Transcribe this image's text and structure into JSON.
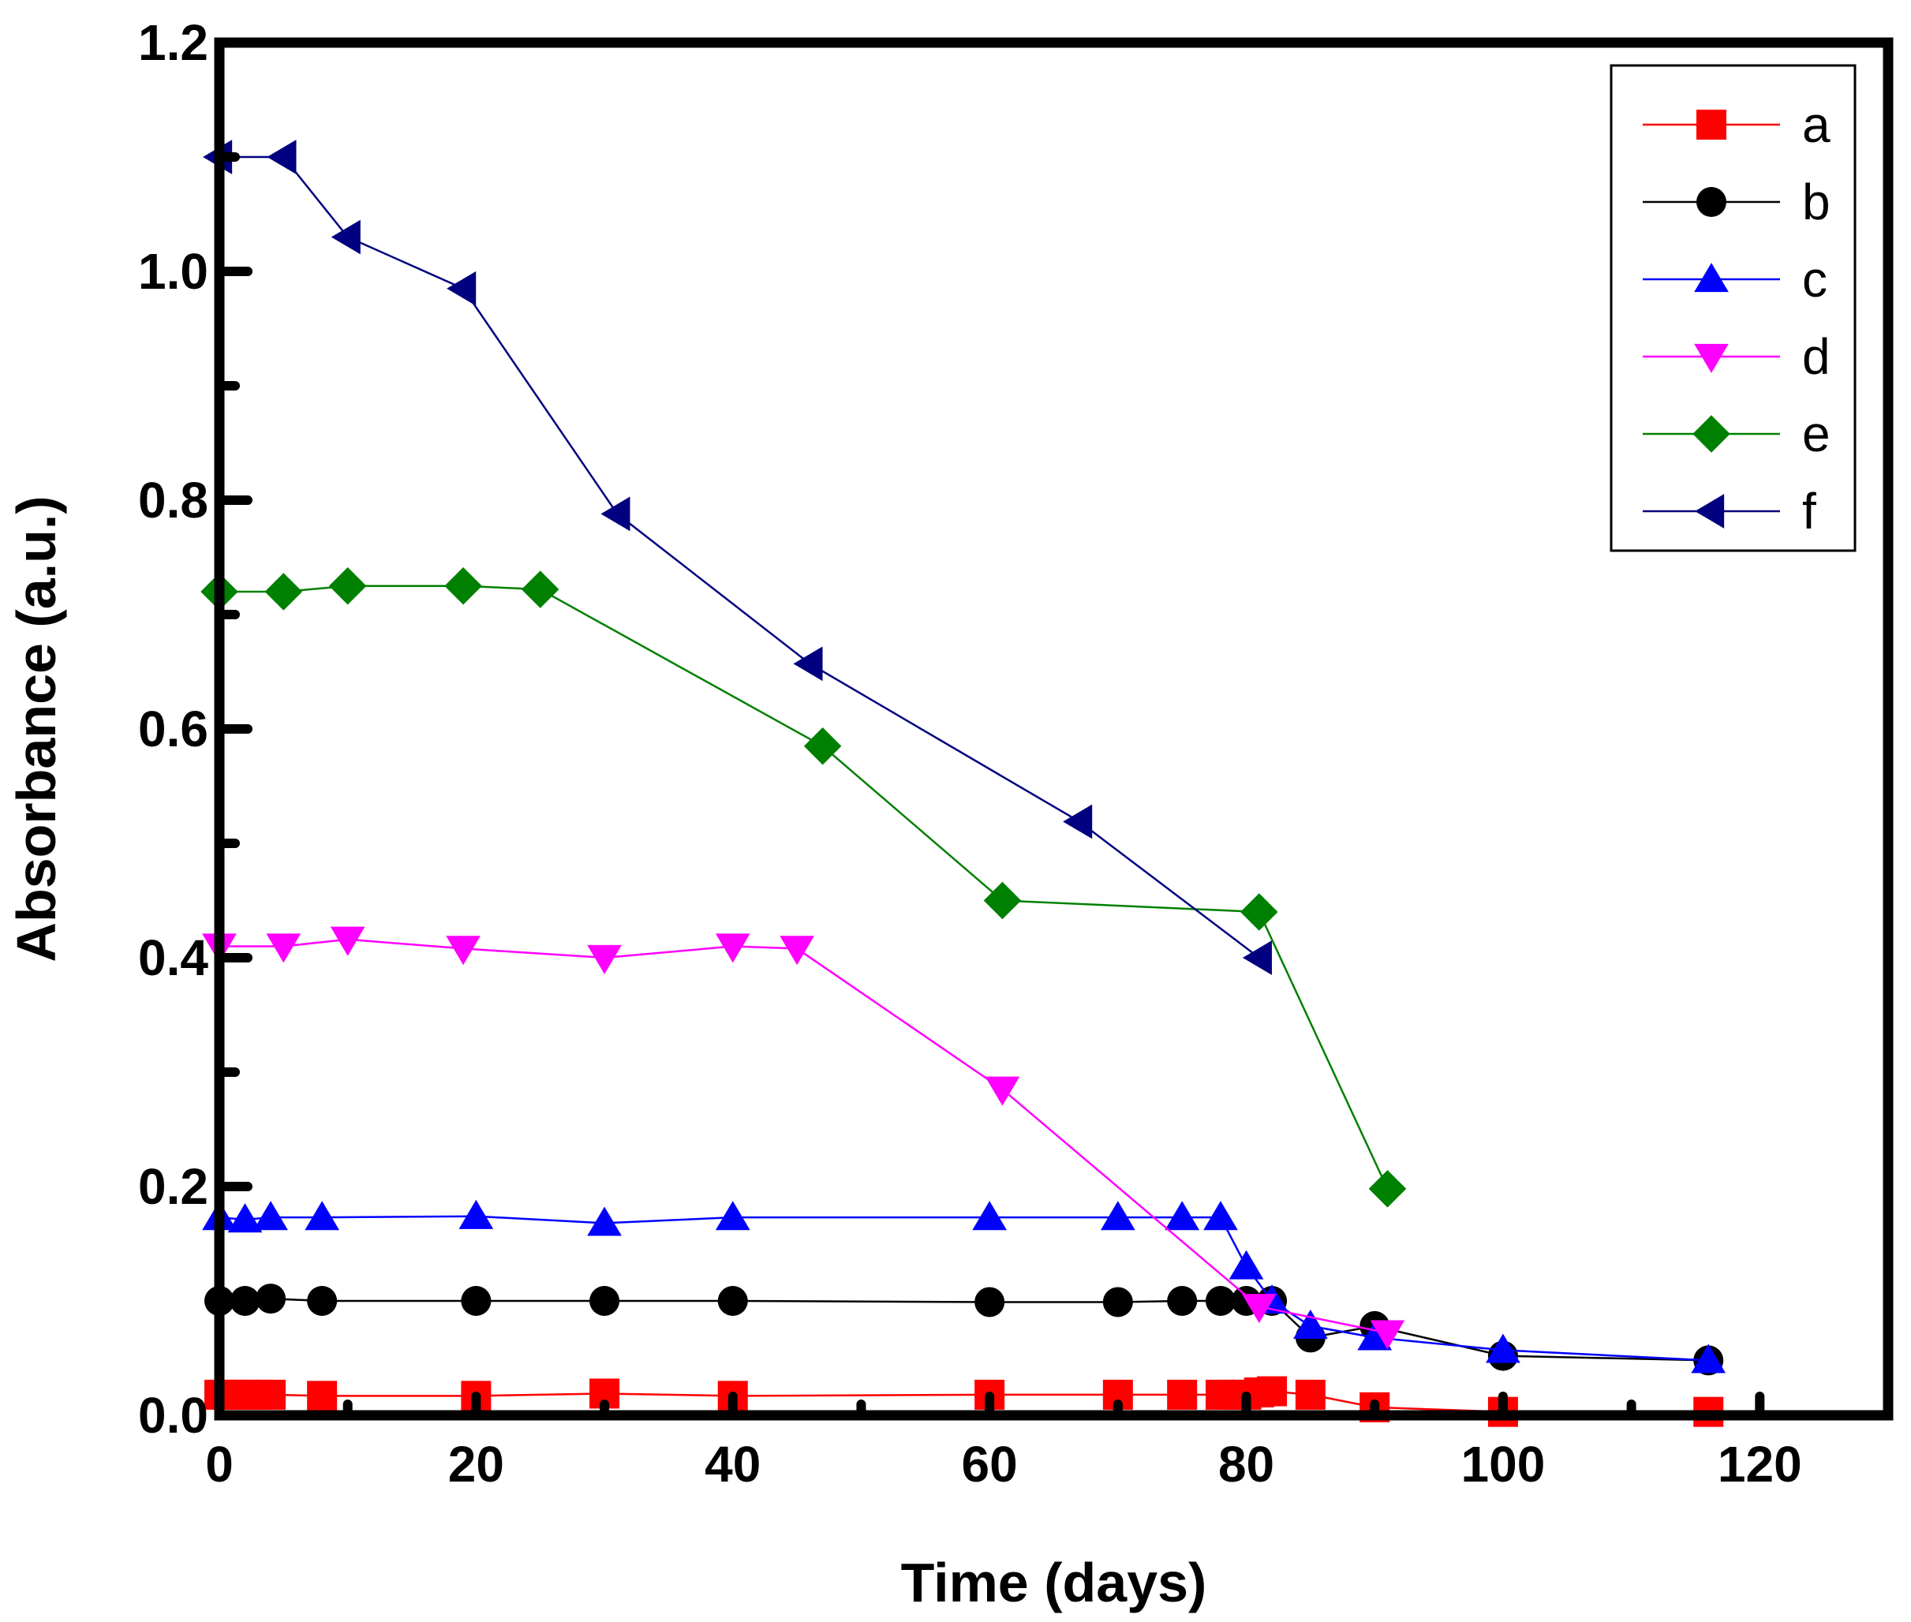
{
  "chart_data": {
    "type": "line",
    "title": "",
    "xlabel": "Time (days)",
    "ylabel": "Absorbance (a.u.)",
    "xlim": [
      0,
      130
    ],
    "ylim": [
      0,
      1.2
    ],
    "xticks": [
      0,
      20,
      40,
      60,
      80,
      100,
      120
    ],
    "xtick_labels": [
      "0",
      "20",
      "40",
      "60",
      "80",
      "100",
      "120"
    ],
    "yticks": [
      0,
      0.2,
      0.4,
      0.6,
      0.8,
      1.0,
      1.2
    ],
    "ytick_labels": [
      "0.0",
      "0.2",
      "0.4",
      "0.6",
      "0.8",
      "1.0",
      "1.2"
    ],
    "grid": false,
    "legend_position": "top-right",
    "series": [
      {
        "name": "a",
        "color": "#ff0000",
        "marker": "square",
        "x": [
          0,
          1,
          2,
          3,
          4,
          8,
          20,
          30,
          40,
          60,
          70,
          75,
          78,
          79,
          80,
          81,
          82,
          85,
          90,
          100,
          116
        ],
        "y": [
          0.018,
          0.018,
          0.018,
          0.018,
          0.018,
          0.017,
          0.017,
          0.019,
          0.017,
          0.018,
          0.018,
          0.018,
          0.018,
          0.018,
          0.018,
          0.02,
          0.021,
          0.018,
          0.007,
          0.003,
          0.003
        ]
      },
      {
        "name": "b",
        "color": "#000000",
        "marker": "circle",
        "x": [
          0,
          2,
          4,
          8,
          20,
          30,
          40,
          60,
          70,
          75,
          78,
          80,
          82,
          85,
          90,
          100,
          116
        ],
        "y": [
          0.1,
          0.1,
          0.102,
          0.1,
          0.1,
          0.1,
          0.1,
          0.099,
          0.099,
          0.1,
          0.1,
          0.1,
          0.1,
          0.068,
          0.078,
          0.052,
          0.048
        ]
      },
      {
        "name": "c",
        "color": "#0000ff",
        "marker": "triangle-up",
        "x": [
          0,
          2,
          4,
          8,
          20,
          30,
          40,
          60,
          70,
          75,
          78,
          80,
          82,
          85,
          90,
          100,
          116
        ],
        "y": [
          0.173,
          0.171,
          0.173,
          0.173,
          0.174,
          0.168,
          0.173,
          0.173,
          0.173,
          0.173,
          0.173,
          0.13,
          0.1,
          0.078,
          0.068,
          0.057,
          0.048
        ]
      },
      {
        "name": "d",
        "color": "#ff00ff",
        "marker": "triangle-down",
        "x": [
          0,
          5,
          10,
          19,
          30,
          40,
          45,
          61,
          81,
          91
        ],
        "y": [
          0.41,
          0.41,
          0.416,
          0.408,
          0.4,
          0.41,
          0.408,
          0.285,
          0.095,
          0.072
        ]
      },
      {
        "name": "e",
        "color": "#008000",
        "marker": "diamond",
        "x": [
          0,
          5,
          10,
          19,
          25,
          47,
          61,
          81,
          91
        ],
        "y": [
          0.72,
          0.72,
          0.725,
          0.725,
          0.722,
          0.585,
          0.45,
          0.44,
          0.198
        ]
      },
      {
        "name": "f",
        "color": "#000080",
        "marker": "triangle-left",
        "x": [
          0,
          5,
          10,
          19,
          31,
          46,
          67,
          81
        ],
        "y": [
          1.1,
          1.1,
          1.03,
          0.985,
          0.788,
          0.657,
          0.519,
          0.4
        ]
      }
    ]
  }
}
